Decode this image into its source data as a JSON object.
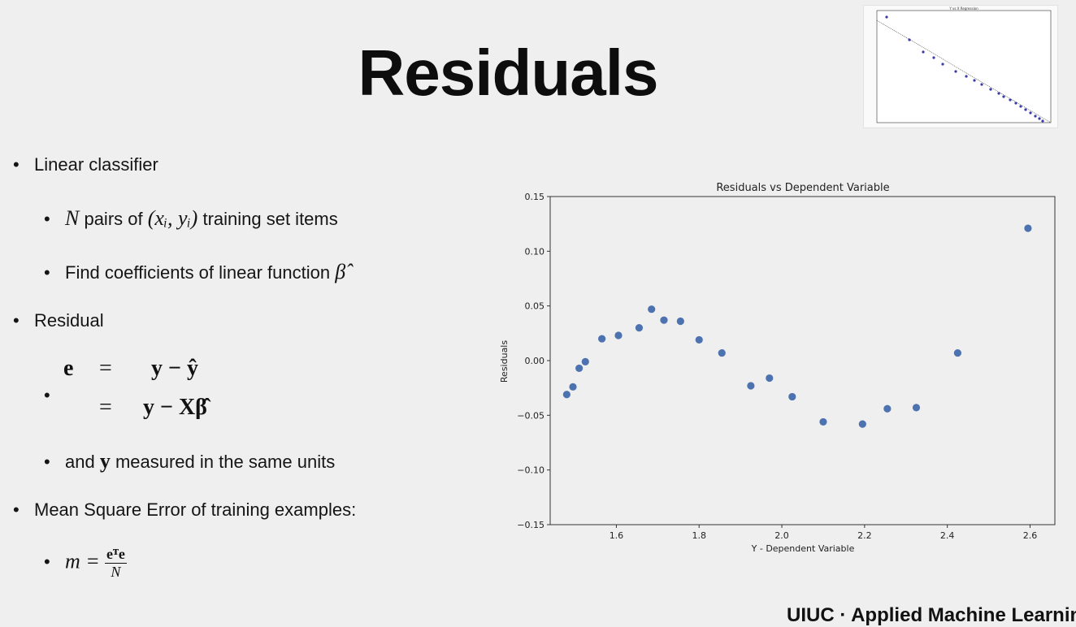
{
  "slide": {
    "title": "Residuals",
    "footer": "UIUC · Applied Machine Learning"
  },
  "bullets": {
    "b1": "Linear classifier",
    "b1a_pre": "N",
    "b1a_mid": " pairs of ",
    "b1a_math": "(xᵢ, yᵢ)",
    "b1a_post": " training set items",
    "b1b": "Find coefficients of linear function ",
    "b1b_math": "β̂",
    "b2": "Residual",
    "eq_line1_lhs": "e",
    "eq_eq": "=",
    "eq_line1_rhs": "y − ŷ",
    "eq_line2_rhs": "y − Xβ̂",
    "b2a_pre": "and ",
    "b2a_bold": "y",
    "b2a_post": " measured in the same units",
    "b3": "Mean Square Error of training examples:",
    "mse_lhs": "m =",
    "mse_num": "eᵀe",
    "mse_den": "N"
  },
  "thumbnail": {
    "title": "Y vs X Regression"
  },
  "chart_data": {
    "type": "scatter",
    "title": "Residuals vs Dependent Variable",
    "xlabel": "Y - Dependent Variable",
    "ylabel": "Residuals",
    "xlim": [
      1.44,
      2.66
    ],
    "ylim": [
      -0.15,
      0.15
    ],
    "xticks": [
      "1.6",
      "1.8",
      "2.0",
      "2.2",
      "2.4",
      "2.6"
    ],
    "yticks": [
      "0.15",
      "0.10",
      "0.05",
      "0.00",
      "−0.05",
      "−0.10",
      "−0.15"
    ],
    "color": "#4c72b0",
    "x": [
      1.48,
      1.495,
      1.51,
      1.525,
      1.565,
      1.605,
      1.655,
      1.685,
      1.715,
      1.755,
      1.8,
      1.855,
      1.925,
      1.97,
      2.025,
      2.1,
      2.195,
      2.255,
      2.325,
      2.425,
      2.595
    ],
    "y": [
      -0.031,
      -0.024,
      -0.007,
      -0.001,
      0.02,
      0.023,
      0.03,
      0.047,
      0.037,
      0.036,
      0.019,
      0.007,
      -0.023,
      -0.016,
      -0.033,
      -0.056,
      -0.058,
      -0.044,
      -0.043,
      0.007,
      0.121
    ]
  }
}
